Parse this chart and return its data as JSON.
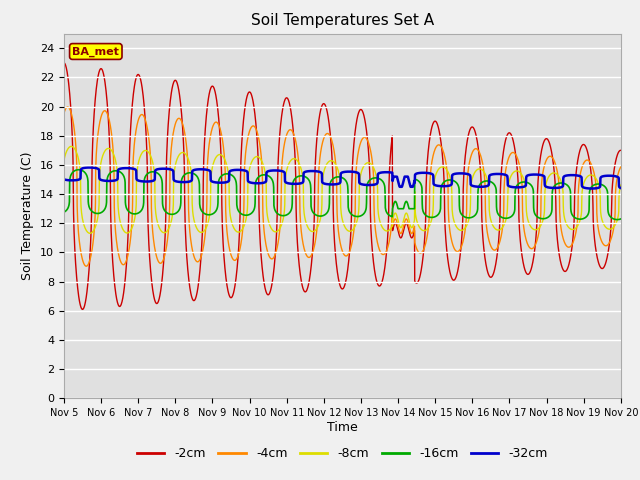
{
  "title": "Soil Temperatures Set A",
  "xlabel": "Time",
  "ylabel": "Soil Temperature (C)",
  "ylim": [
    0,
    25
  ],
  "yticks": [
    0,
    2,
    4,
    6,
    8,
    10,
    12,
    14,
    16,
    18,
    20,
    22,
    24
  ],
  "bg_color": "#e0e0e0",
  "fig_bg": "#f0f0f0",
  "grid_color": "#ffffff",
  "annotation": "BA_met",
  "annotation_bg": "#ffff00",
  "annotation_border": "#8b0000",
  "series_colors": [
    "#cc0000",
    "#ff8800",
    "#dddd00",
    "#00aa00",
    "#0000cc"
  ],
  "series_labels": [
    "-2cm",
    "-4cm",
    "-8cm",
    "-16cm",
    "-32cm"
  ],
  "series_lw": [
    1.0,
    1.0,
    1.0,
    1.2,
    1.8
  ],
  "xticklabels": [
    "Nov 5",
    "Nov 6",
    "Nov 7",
    "Nov 8",
    "Nov 9",
    "Nov 10",
    "Nov 11",
    "Nov 12",
    "Nov 13",
    "Nov 14",
    "Nov 15",
    "Nov 16",
    "Nov 17",
    "Nov 18",
    "Nov 19",
    "Nov 20"
  ],
  "n_days": 15,
  "pts_per_day": 144
}
